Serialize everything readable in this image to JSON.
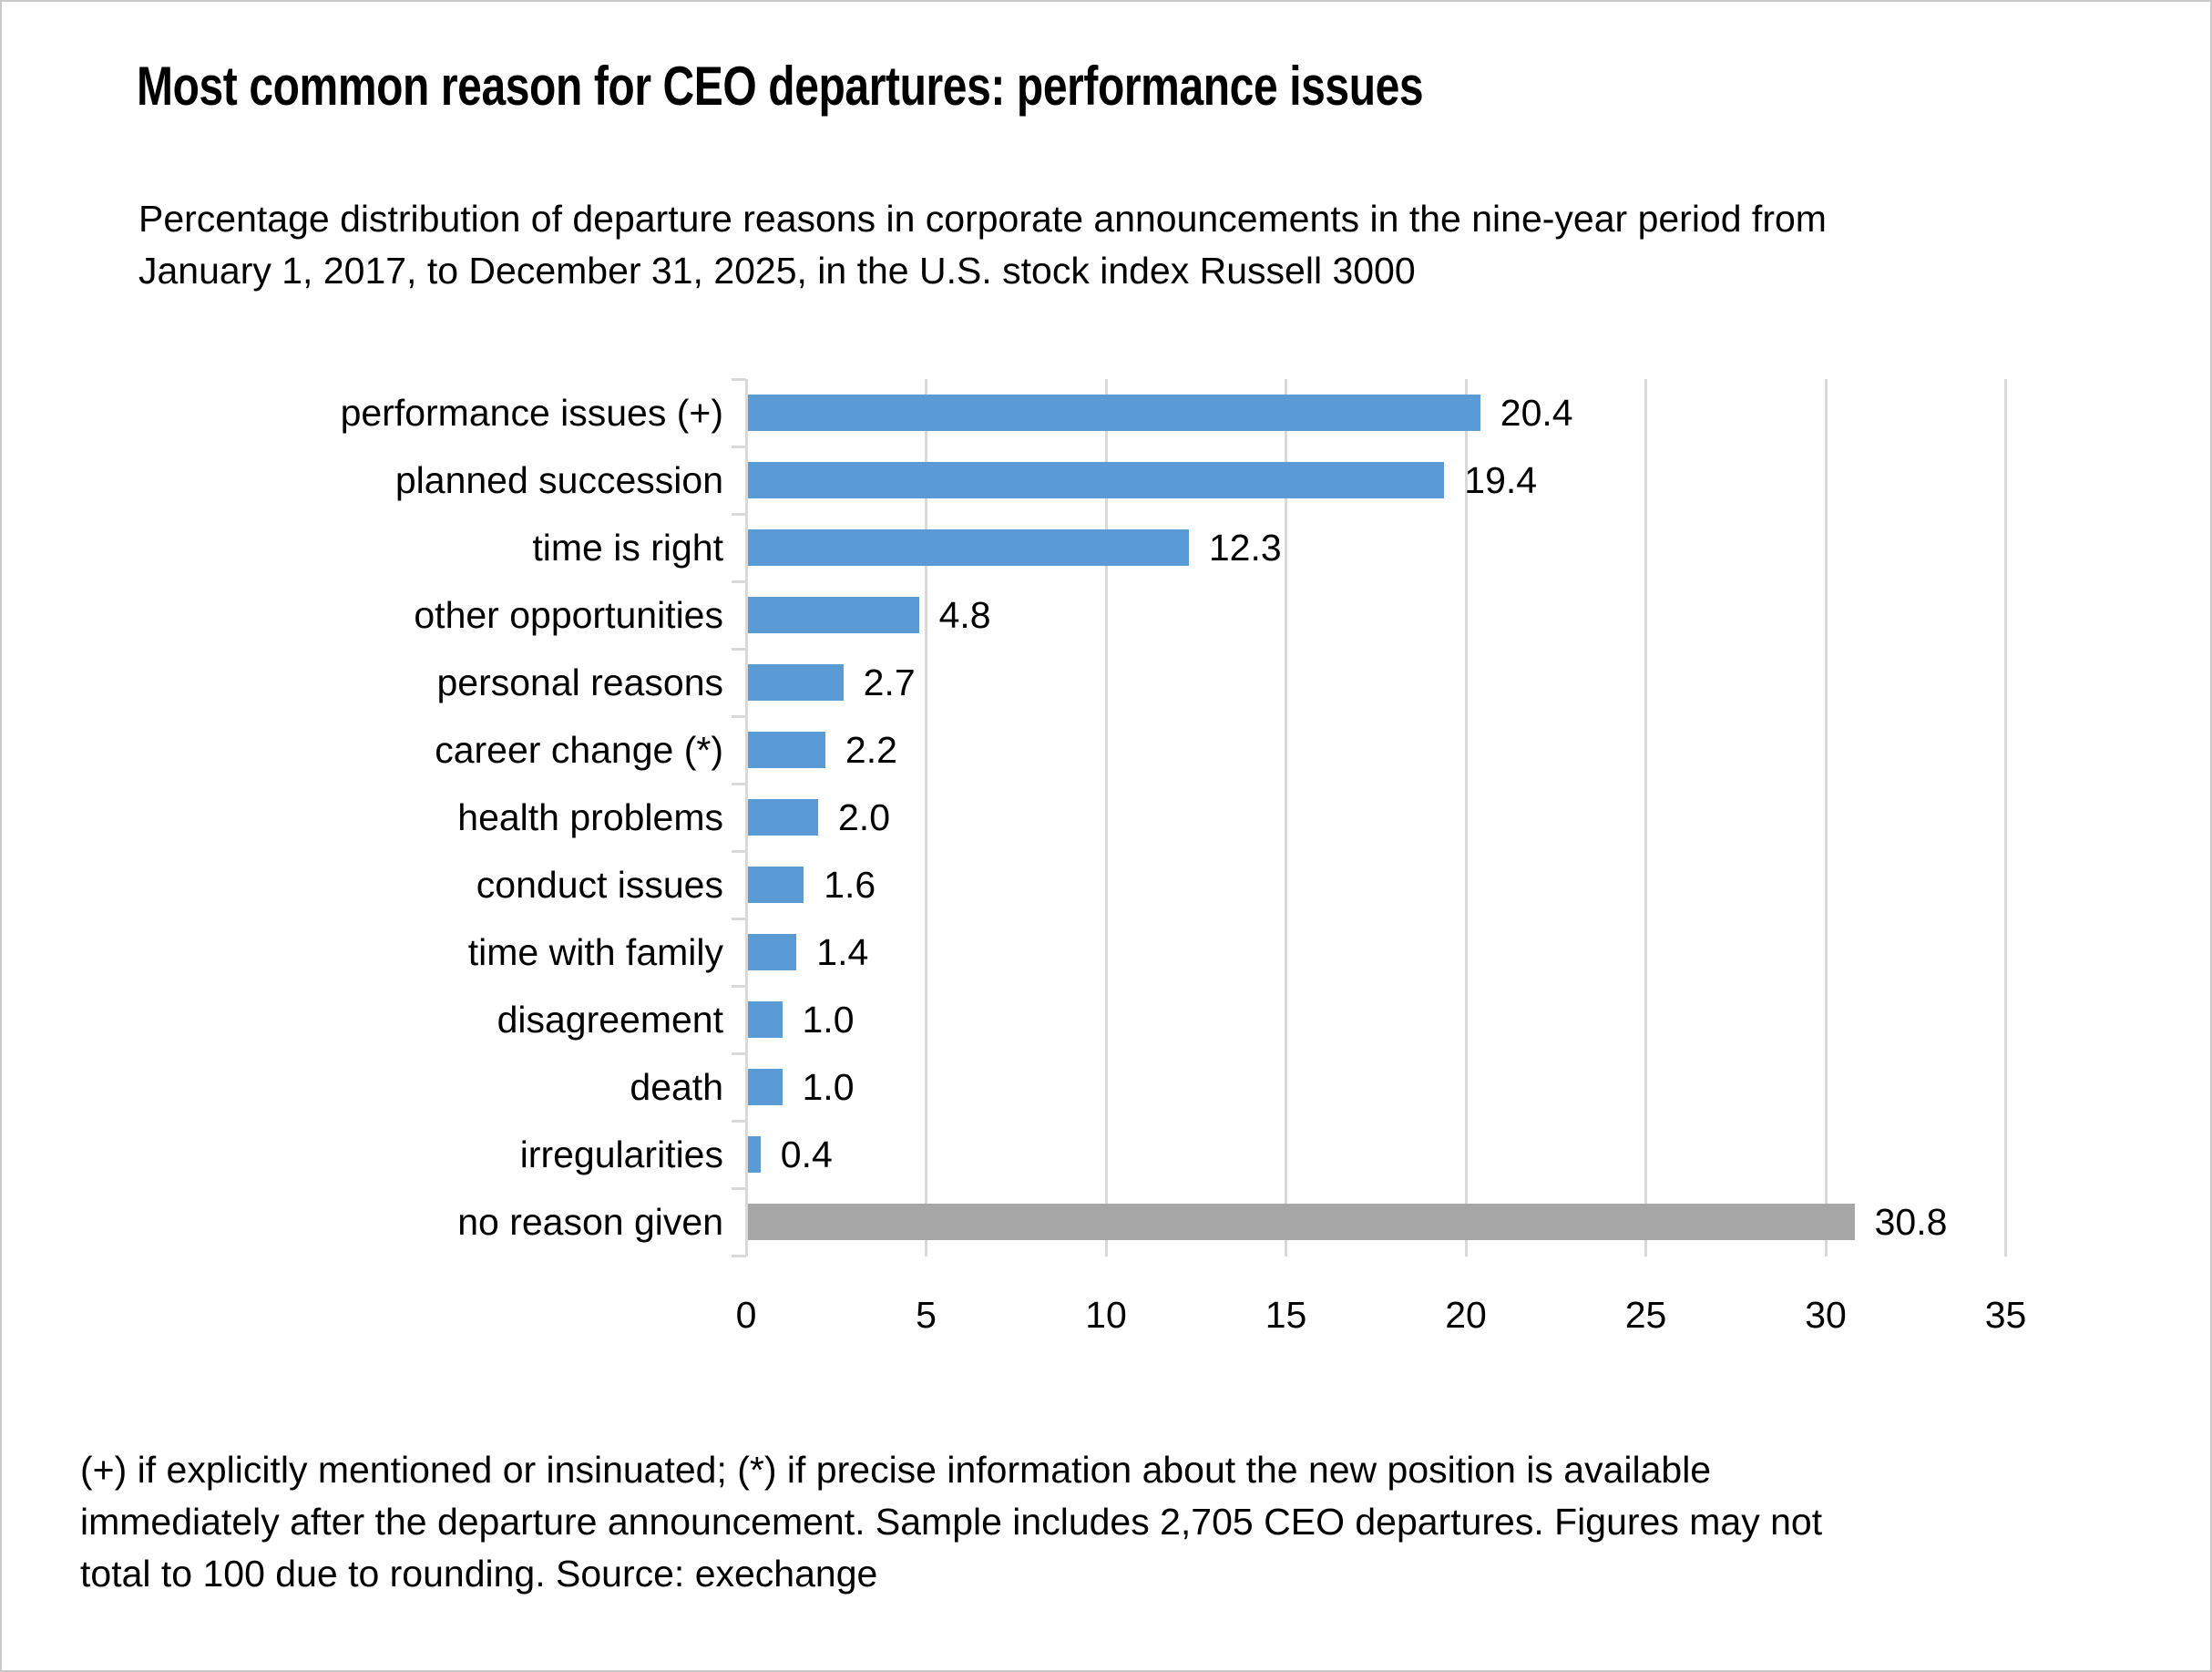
{
  "title": "Most common reason for CEO departures: performance issues",
  "subtitle": {
    "lines": [
      "Percentage distribution of departure reasons in corporate announcements in the nine-year period from",
      "January 1, 2017, to December 31, 2025, in the U.S. stock index Russell 3000"
    ]
  },
  "footnote": {
    "lines": [
      "(+) if explicitly mentioned or insinuated; (*) if precise information about the new position is available",
      "immediately after the departure announcement. Sample includes 2,705 CEO departures. Figures may not",
      "total to 100 due to rounding. Source: exechange"
    ]
  },
  "chart_data": {
    "type": "bar",
    "orientation": "horizontal",
    "title": "Most common reason for CEO departures: performance issues",
    "categories": [
      "performance issues (+)",
      "planned succession",
      "time is right",
      "other opportunities",
      "personal reasons",
      "career change (*)",
      "health problems",
      "conduct issues",
      "time with family",
      "disagreement",
      "death",
      "irregularities",
      "no reason given"
    ],
    "values": [
      20.4,
      19.4,
      12.3,
      4.8,
      2.7,
      2.2,
      2.0,
      1.6,
      1.4,
      1.0,
      1.0,
      0.4,
      30.8
    ],
    "value_labels": [
      "20.4",
      "19.4",
      "12.3",
      "4.8",
      "2.7",
      "2.2",
      "2.0",
      "1.6",
      "1.4",
      "1.0",
      "1.0",
      "0.4",
      "30.8"
    ],
    "xlabel": "",
    "ylabel": "",
    "xlim": [
      0,
      35
    ],
    "xticks": [
      0,
      5,
      10,
      15,
      20,
      25,
      30,
      35
    ],
    "grid": true,
    "legend": false,
    "colors": {
      "bar_default": "#5B9BD5",
      "bar_no_reason_given": "#A6A6A6",
      "gridline": "#D9D9D9",
      "text": "#000000"
    },
    "bar_colors": [
      "#5B9BD5",
      "#5B9BD5",
      "#5B9BD5",
      "#5B9BD5",
      "#5B9BD5",
      "#5B9BD5",
      "#5B9BD5",
      "#5B9BD5",
      "#5B9BD5",
      "#5B9BD5",
      "#5B9BD5",
      "#5B9BD5",
      "#A6A6A6"
    ]
  }
}
